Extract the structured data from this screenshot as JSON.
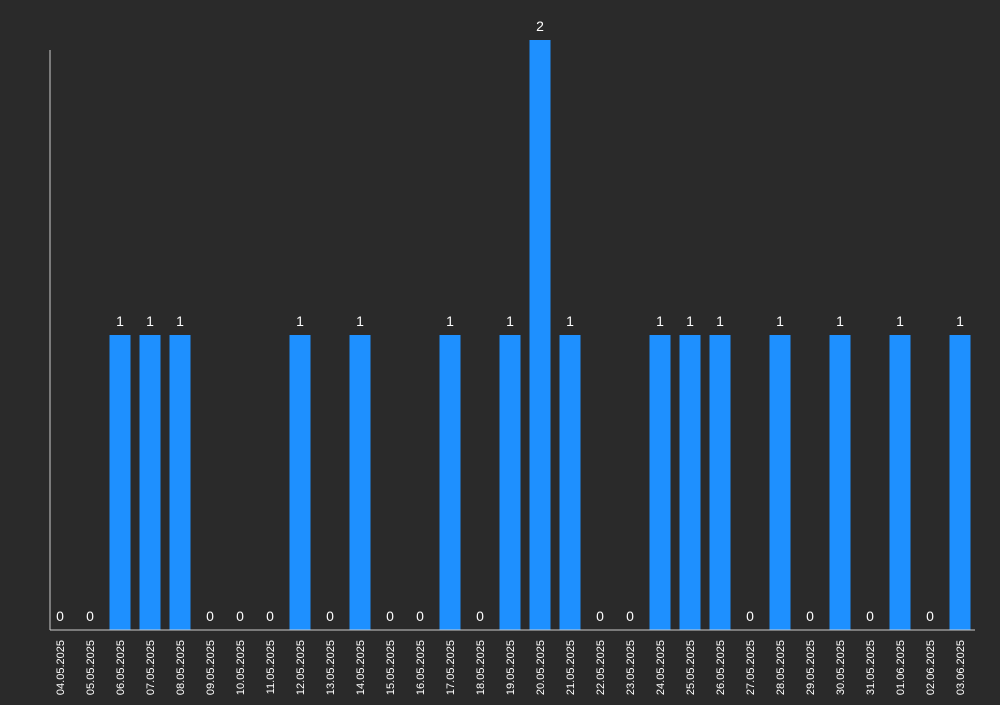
{
  "chart_data": {
    "type": "bar",
    "categories": [
      "04.05.2025",
      "05.05.2025",
      "06.05.2025",
      "07.05.2025",
      "08.05.2025",
      "09.05.2025",
      "10.05.2025",
      "11.05.2025",
      "12.05.2025",
      "13.05.2025",
      "14.05.2025",
      "15.05.2025",
      "16.05.2025",
      "17.05.2025",
      "18.05.2025",
      "19.05.2025",
      "20.05.2025",
      "21.05.2025",
      "22.05.2025",
      "23.05.2025",
      "24.05.2025",
      "25.05.2025",
      "26.05.2025",
      "27.05.2025",
      "28.05.2025",
      "29.05.2025",
      "30.05.2025",
      "31.05.2025",
      "01.06.2025",
      "02.06.2025",
      "03.06.2025"
    ],
    "values": [
      0,
      0,
      1,
      1,
      1,
      0,
      0,
      0,
      1,
      0,
      1,
      0,
      0,
      1,
      0,
      1,
      2,
      1,
      0,
      0,
      1,
      1,
      1,
      0,
      1,
      0,
      1,
      0,
      1,
      0,
      1
    ],
    "ylim": [
      0,
      2
    ],
    "grid": false,
    "legend": "none",
    "colors": {
      "background": "#2a2a2a",
      "bar": "#1e90ff",
      "axis": "#cccccc",
      "text": "#ffffff"
    }
  }
}
